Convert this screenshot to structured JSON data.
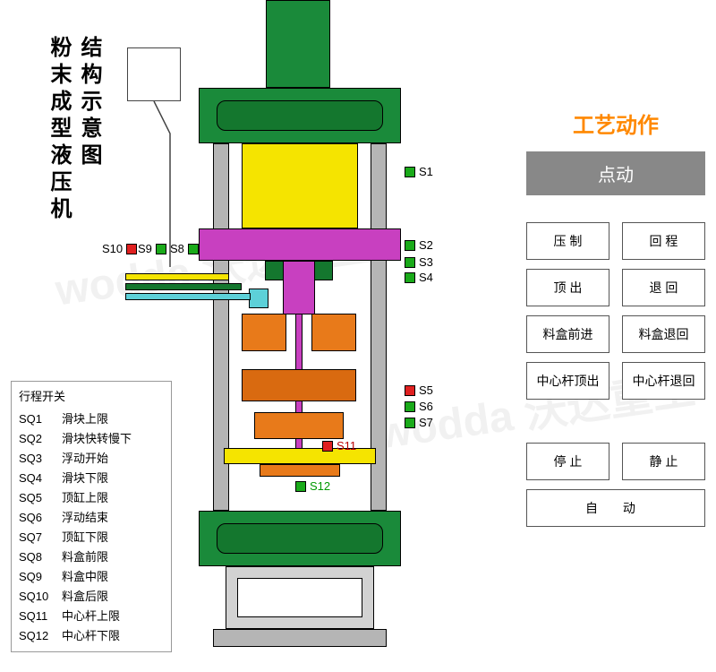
{
  "titles": {
    "t1": "结构示意图",
    "t2": "粉末成型液压机"
  },
  "sensors": {
    "s1": "S1",
    "s2": "S2",
    "s3": "S3",
    "s4": "S4",
    "s5": "S5",
    "s6": "S6",
    "s7": "S7",
    "s8": "S8",
    "s9": "S9",
    "s10": "S10",
    "s11": "S11",
    "s12": "S12"
  },
  "sensor_colors": {
    "green": "#1aaa1a",
    "red": "#e02020"
  },
  "legend": {
    "title": "行程开关",
    "items": [
      {
        "sq": "SQ1",
        "label": "滑块上限"
      },
      {
        "sq": "SQ2",
        "label": "滑块快转慢下"
      },
      {
        "sq": "SQ3",
        "label": "浮动开始"
      },
      {
        "sq": "SQ4",
        "label": "滑块下限"
      },
      {
        "sq": "SQ5",
        "label": "顶缸上限"
      },
      {
        "sq": "SQ6",
        "label": "浮动结束"
      },
      {
        "sq": "SQ7",
        "label": "顶缸下限"
      },
      {
        "sq": "SQ8",
        "label": "料盒前限"
      },
      {
        "sq": "SQ9",
        "label": "料盒中限"
      },
      {
        "sq": "SQ10",
        "label": "料盒后限"
      },
      {
        "sq": "SQ11",
        "label": "中心杆上限"
      },
      {
        "sq": "SQ12",
        "label": "中心杆下限"
      }
    ]
  },
  "controls": {
    "section": "工艺动作",
    "mode": "点动",
    "buttons": {
      "press": "压 制",
      "return": "回 程",
      "eject": "顶 出",
      "retract": "退 回",
      "box_fwd": "料盒前进",
      "box_back": "料盒退回",
      "rod_up": "中心杆顶出",
      "rod_back": "中心杆退回",
      "stop": "停 止",
      "still": "静 止",
      "auto": "自   动"
    }
  },
  "colors": {
    "dark_green": "#1a8a3a",
    "green_frame": "#14772e",
    "yellow": "#f5e400",
    "orange": "#e87a1a",
    "orange_dark": "#d96a10",
    "magenta": "#c840c0",
    "cyan": "#5dd0d8",
    "gray": "#b5b5b5",
    "white": "#ffffff",
    "blue": "#3a5af5"
  },
  "watermark": "wodda 沃达重工"
}
